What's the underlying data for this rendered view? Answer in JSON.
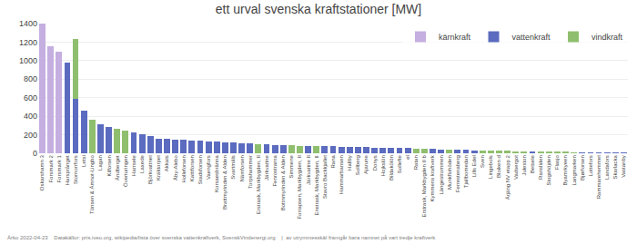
{
  "chart_data": {
    "type": "bar",
    "stacked": true,
    "title": "ett urval svenska kraftstationer [MW]",
    "annotations": [
      "Ärko 2022-04-23    Datakällor: pris.iveo.org, wikipedia/lista över svenska vattenkraftverk, SvenskVindenergi.org    |  av utrymmesskäl framgår bara namnet på vart tredje kraftverk"
    ],
    "categories": [
      "Oskarshamn 3",
      "Forsmark 2",
      "Forsmark 1",
      "Harsprånget",
      "Stornorrfors",
      "Letsi",
      "Tönsen & Ämnot-Lingbo",
      "Lagan",
      "Kilforsen",
      "Ändberget",
      "Överturingen",
      "Harrsele",
      "Laxede",
      "Björkvattnet",
      "Kräktorpet",
      "Akkats",
      "Åby-Alebo",
      "Holleforsen",
      "Katttforsen",
      "Stadsforsen",
      "Vaengfors",
      "Korsaesbränna",
      "Brattmyrinden & Alden",
      "Svartmäls",
      "Nämforsen",
      "Torpshammer",
      "Erstrask, Markbygden, II",
      "Järkvattne",
      "Fenrostrarna",
      "Bottnmyrinden & Alden",
      "Simmene",
      "Forrapsen, Markbygden, II",
      "Järkvattne II",
      "Enstrask, Markbygden, II",
      "Stavro Backkjallet",
      "Rana",
      "Hammarbansen",
      "Hallby",
      "Sollberg",
      "Ajarune",
      "Donys",
      "Hojkslön",
      "Bildakölön",
      "Sollefte",
      "el",
      "Ratan",
      "Erstrask, Markbygden II b",
      "Kymmens kraftverk",
      "Längestrommen",
      "Munkflohöden",
      "Ferrestenaberg",
      "Tjallbomedan",
      "Lills Edel",
      "Sven",
      "Lingebols",
      "Bloiken d",
      "Ärjäng NV etapp 2",
      "Vadsergot",
      "Juleston",
      "Betsele",
      "Ransliden",
      "Stogshöjden",
      "Flasjo",
      "Byamrkyeen",
      "Langmarken",
      "Bjørforsen",
      "Lottefors",
      "Rammarehemmet",
      "Landafors",
      "Skarlacka",
      "Vastanby"
    ],
    "series": [
      {
        "name": "kärnkraft",
        "color": "#c5aee0",
        "values": [
          1400,
          1155,
          1100,
          0,
          0,
          0,
          0,
          0,
          0,
          0,
          0,
          0,
          0,
          0,
          0,
          0,
          0,
          0,
          0,
          0,
          0,
          0,
          0,
          0,
          0,
          0,
          0,
          0,
          0,
          0,
          0,
          0,
          0,
          0,
          0,
          0,
          0,
          0,
          0,
          0,
          0,
          0,
          0,
          0,
          0,
          0,
          0,
          0,
          0,
          0,
          0,
          0,
          0,
          0,
          0,
          0,
          0,
          0,
          0,
          0,
          0,
          0,
          0,
          0,
          0,
          0,
          0,
          0,
          0,
          0,
          0
        ]
      },
      {
        "name": "vattenkraft",
        "color": "#5b6bbf",
        "values": [
          0,
          0,
          0,
          977,
          590,
          460,
          0,
          310,
          288,
          0,
          0,
          225,
          210,
          185,
          155,
          152,
          148,
          145,
          140,
          138,
          132,
          125,
          120,
          115,
          110,
          108,
          0,
          95,
          90,
          88,
          0,
          0,
          80,
          0,
          75,
          74,
          72,
          70,
          68,
          65,
          62,
          60,
          58,
          55,
          55,
          0,
          0,
          45,
          43,
          0,
          40,
          38,
          32,
          0,
          0,
          0,
          0,
          0,
          0,
          18,
          0,
          0,
          0,
          0,
          0,
          6,
          6,
          5,
          5,
          4,
          4
        ]
      },
      {
        "name": "vindkraft",
        "color": "#8fbf6e",
        "values": [
          0,
          0,
          0,
          0,
          640,
          0,
          360,
          0,
          0,
          265,
          242,
          0,
          0,
          0,
          0,
          0,
          0,
          0,
          0,
          0,
          0,
          0,
          0,
          0,
          0,
          0,
          100,
          0,
          0,
          0,
          85,
          82,
          0,
          78,
          0,
          0,
          0,
          0,
          0,
          0,
          0,
          0,
          0,
          0,
          0,
          52,
          50,
          0,
          0,
          42,
          0,
          0,
          0,
          30,
          29,
          28,
          25,
          22,
          20,
          0,
          16,
          14,
          12,
          10,
          8,
          0,
          0,
          0,
          0,
          0,
          0
        ]
      }
    ],
    "ylim": [
      0,
      1400
    ],
    "yticks": [
      0,
      200,
      400,
      600,
      800,
      1000,
      1200,
      1400
    ],
    "grid": true,
    "legend": "upper right"
  }
}
